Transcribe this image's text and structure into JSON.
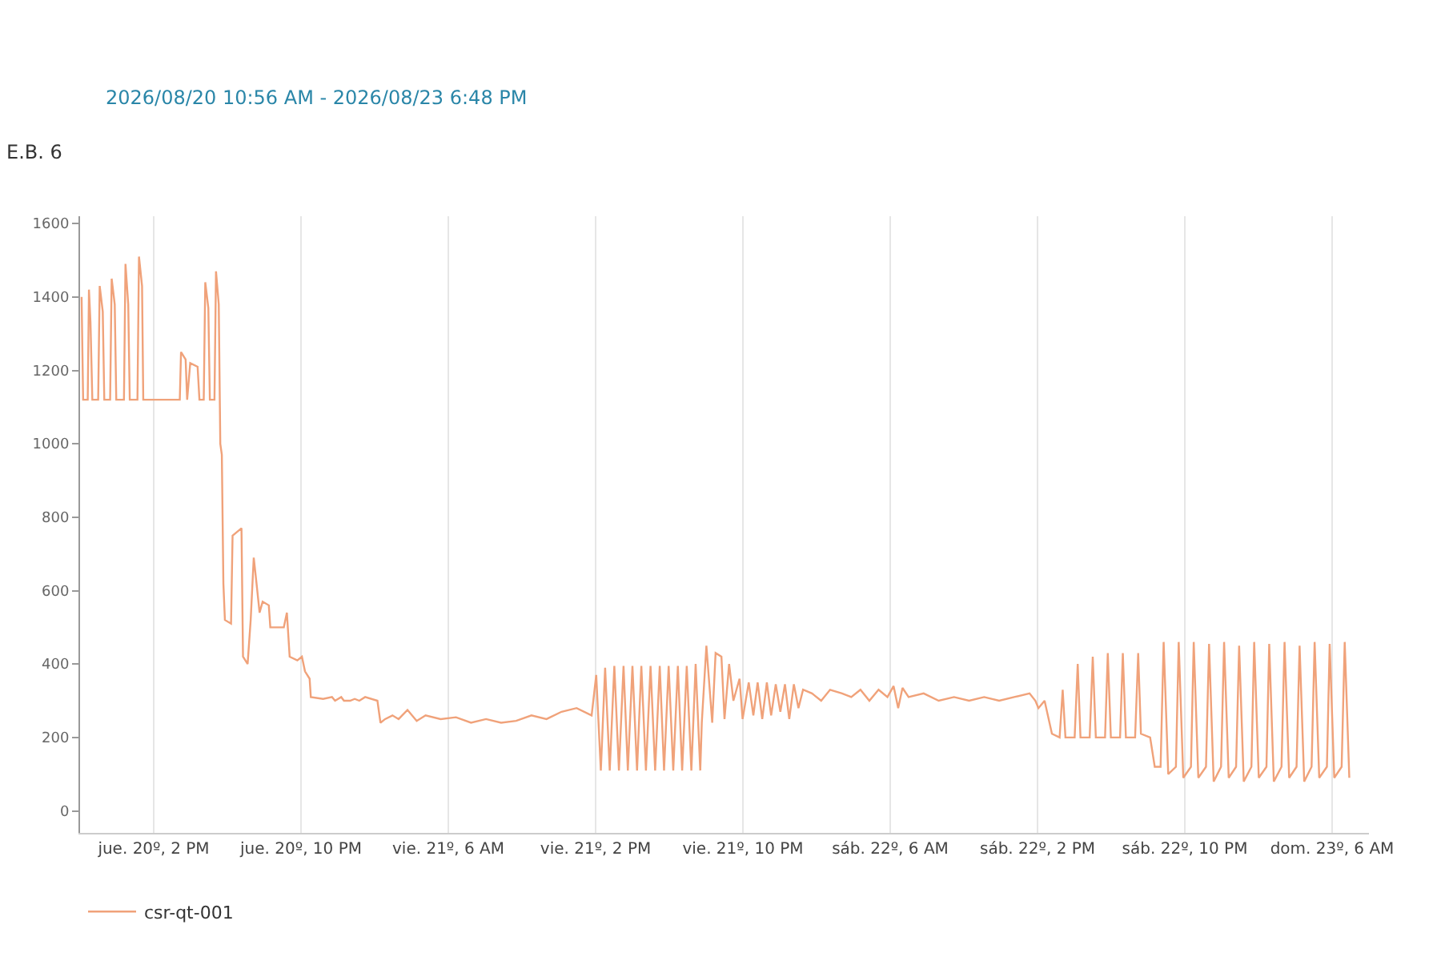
{
  "chart_data": {
    "type": "line",
    "title": "E.B. 6",
    "subtitle": "2026/08/20 10:56 AM - 2026/08/23 6:48 PM",
    "x": [
      "2026-08-20T10:05",
      "2026-08-20T10:10",
      "2026-08-20T10:25",
      "2026-08-20T10:29",
      "2026-08-20T10:34",
      "2026-08-20T10:40",
      "2026-08-20T10:59",
      "2026-08-20T11:04",
      "2026-08-20T11:14",
      "2026-08-20T11:19",
      "2026-08-20T11:38",
      "2026-08-20T11:43",
      "2026-08-20T11:53",
      "2026-08-20T11:58",
      "2026-08-20T12:23",
      "2026-08-20T12:28",
      "2026-08-20T12:37",
      "2026-08-20T12:42",
      "2026-08-20T13:07",
      "2026-08-20T13:12",
      "2026-08-20T13:22",
      "2026-08-20T13:26",
      "2026-08-20T15:25",
      "2026-08-20T15:29",
      "2026-08-20T15:44",
      "2026-08-20T15:49",
      "2026-08-20T15:59",
      "2026-08-20T16:23",
      "2026-08-20T16:29",
      "2026-08-20T16:43",
      "2026-08-20T16:48",
      "2026-08-20T16:58",
      "2026-08-20T17:03",
      "2026-08-20T17:18",
      "2026-08-20T17:23",
      "2026-08-20T17:32",
      "2026-08-20T17:37",
      "2026-08-20T17:42",
      "2026-08-20T17:47",
      "2026-08-20T17:52",
      "2026-08-20T18:12",
      "2026-08-20T18:17",
      "2026-08-20T18:46",
      "2026-08-20T18:51",
      "2026-08-20T19:06",
      "2026-08-20T19:16",
      "2026-08-20T19:26",
      "2026-08-20T19:35",
      "2026-08-20T19:45",
      "2026-08-20T19:55",
      "2026-08-20T20:15",
      "2026-08-20T20:20",
      "2026-08-20T21:04",
      "2026-08-20T21:14",
      "2026-08-20T21:23",
      "2026-08-20T21:48",
      "2026-08-20T22:03",
      "2026-08-20T22:13",
      "2026-08-20T22:28",
      "2026-08-20T22:32",
      "2026-08-20T23:12",
      "2026-08-20T23:41",
      "2026-08-20T23:51",
      "2026-08-21T00:11",
      "2026-08-21T00:20",
      "2026-08-21T00:40",
      "2026-08-21T00:55",
      "2026-08-21T01:10",
      "2026-08-21T01:29",
      "2026-08-21T02:09",
      "2026-08-21T02:19",
      "2026-08-21T02:34",
      "2026-08-21T02:58",
      "2026-08-21T03:18",
      "2026-08-21T03:47",
      "2026-08-21T04:17",
      "2026-08-21T04:46",
      "2026-08-21T05:35",
      "2026-08-21T06:25",
      "2026-08-21T07:14",
      "2026-08-21T08:03",
      "2026-08-21T08:52",
      "2026-08-21T09:41",
      "2026-08-21T10:31",
      "2026-08-21T11:20",
      "2026-08-21T12:09",
      "2026-08-21T12:58",
      "2026-08-21T13:47",
      "2026-08-21T14:02",
      "2026-08-21T14:17",
      "2026-08-21T14:31",
      "2026-08-21T14:46",
      "2026-08-21T15:01",
      "2026-08-21T15:16",
      "2026-08-21T15:31",
      "2026-08-21T15:45",
      "2026-08-21T16:00",
      "2026-08-21T16:15",
      "2026-08-21T16:29",
      "2026-08-21T16:44",
      "2026-08-21T16:59",
      "2026-08-21T17:14",
      "2026-08-21T17:29",
      "2026-08-21T17:43",
      "2026-08-21T17:58",
      "2026-08-21T18:13",
      "2026-08-21T18:28",
      "2026-08-21T18:42",
      "2026-08-21T18:57",
      "2026-08-21T19:12",
      "2026-08-21T19:26",
      "2026-08-21T19:41",
      "2026-08-21T19:46",
      "2026-08-21T20:01",
      "2026-08-21T20:20",
      "2026-08-21T20:31",
      "2026-08-21T20:50",
      "2026-08-21T21:00",
      "2026-08-21T21:15",
      "2026-08-21T21:29",
      "2026-08-21T21:49",
      "2026-08-21T21:59",
      "2026-08-21T22:19",
      "2026-08-21T22:34",
      "2026-08-21T22:48",
      "2026-08-21T23:03",
      "2026-08-21T23:18",
      "2026-08-21T23:32",
      "2026-08-21T23:47",
      "2026-08-22T00:02",
      "2026-08-22T00:17",
      "2026-08-22T00:31",
      "2026-08-22T00:46",
      "2026-08-22T01:01",
      "2026-08-22T01:16",
      "2026-08-22T01:45",
      "2026-08-22T02:15",
      "2026-08-22T02:44",
      "2026-08-22T03:23",
      "2026-08-22T03:53",
      "2026-08-22T04:23",
      "2026-08-22T04:52",
      "2026-08-22T05:22",
      "2026-08-22T05:51",
      "2026-08-22T06:11",
      "2026-08-22T06:26",
      "2026-08-22T06:40",
      "2026-08-22T07:00",
      "2026-08-22T07:49",
      "2026-08-22T08:38",
      "2026-08-22T09:28",
      "2026-08-22T10:17",
      "2026-08-22T11:06",
      "2026-08-22T11:55",
      "2026-08-22T12:44",
      "2026-08-22T13:34",
      "2026-08-22T13:53",
      "2026-08-22T14:03",
      "2026-08-22T14:23",
      "2026-08-22T14:47",
      "2026-08-22T15:12",
      "2026-08-22T15:22",
      "2026-08-22T15:31",
      "2026-08-22T16:01",
      "2026-08-22T16:11",
      "2026-08-22T16:20",
      "2026-08-22T16:50",
      "2026-08-22T17:00",
      "2026-08-22T17:10",
      "2026-08-22T17:40",
      "2026-08-22T17:49",
      "2026-08-22T17:59",
      "2026-08-22T18:29",
      "2026-08-22T18:38",
      "2026-08-22T18:48",
      "2026-08-22T19:18",
      "2026-08-22T19:28",
      "2026-08-22T19:37",
      "2026-08-22T20:07",
      "2026-08-22T20:22",
      "2026-08-22T20:41",
      "2026-08-22T20:51",
      "2026-08-22T21:06",
      "2026-08-22T21:31",
      "2026-08-22T21:40",
      "2026-08-22T21:55",
      "2026-08-22T22:20",
      "2026-08-22T22:29",
      "2026-08-22T22:44",
      "2026-08-22T23:09",
      "2026-08-22T23:19",
      "2026-08-22T23:34",
      "2026-08-22T23:58",
      "2026-08-23T00:08",
      "2026-08-23T00:23",
      "2026-08-23T00:47",
      "2026-08-23T00:57",
      "2026-08-23T01:12",
      "2026-08-23T01:37",
      "2026-08-23T01:46",
      "2026-08-23T02:01",
      "2026-08-23T02:26",
      "2026-08-23T02:35",
      "2026-08-23T02:50",
      "2026-08-23T03:15",
      "2026-08-23T03:25",
      "2026-08-23T03:40",
      "2026-08-23T04:04",
      "2026-08-23T04:14",
      "2026-08-23T04:29",
      "2026-08-23T04:53",
      "2026-08-23T05:03",
      "2026-08-23T05:18",
      "2026-08-23T05:43",
      "2026-08-23T05:52",
      "2026-08-23T06:07",
      "2026-08-23T06:31",
      "2026-08-23T06:41",
      "2026-08-23T06:56"
    ],
    "series": [
      {
        "name": "csr-qt-001",
        "color": "#f0a27a",
        "values": [
          1400,
          1120,
          1120,
          1420,
          1330,
          1120,
          1120,
          1430,
          1360,
          1120,
          1120,
          1450,
          1380,
          1120,
          1120,
          1490,
          1380,
          1120,
          1120,
          1510,
          1430,
          1120,
          1120,
          1250,
          1230,
          1120,
          1220,
          1210,
          1120,
          1120,
          1440,
          1370,
          1120,
          1120,
          1470,
          1380,
          1000,
          970,
          620,
          520,
          510,
          750,
          770,
          420,
          400,
          520,
          690,
          620,
          540,
          570,
          560,
          500,
          500,
          540,
          420,
          410,
          420,
          380,
          360,
          310,
          305,
          310,
          300,
          310,
          300,
          300,
          305,
          300,
          310,
          300,
          240,
          250,
          260,
          250,
          275,
          245,
          260,
          250,
          255,
          240,
          250,
          240,
          245,
          260,
          250,
          270,
          280,
          260,
          370,
          110,
          390,
          110,
          395,
          110,
          395,
          110,
          395,
          110,
          395,
          110,
          395,
          110,
          395,
          110,
          395,
          110,
          395,
          110,
          395,
          110,
          400,
          110,
          240,
          450,
          240,
          430,
          420,
          250,
          400,
          300,
          360,
          250,
          350,
          260,
          350,
          250,
          350,
          260,
          345,
          270,
          345,
          250,
          345,
          280,
          330,
          320,
          300,
          330,
          320,
          310,
          330,
          300,
          330,
          310,
          340,
          280,
          335,
          310,
          320,
          300,
          310,
          300,
          310,
          300,
          310,
          320,
          300,
          280,
          300,
          210,
          200,
          330,
          200,
          200,
          400,
          200,
          200,
          420,
          200,
          200,
          430,
          200,
          200,
          430,
          200,
          200,
          430,
          210,
          200,
          120,
          120,
          460,
          100,
          120,
          460,
          90,
          120,
          460,
          90,
          120,
          455,
          80,
          120,
          460,
          90,
          120,
          450,
          80,
          120,
          460,
          90,
          120,
          455,
          80,
          120,
          460,
          90,
          120,
          450,
          80,
          120,
          460,
          90,
          120,
          455,
          90,
          120,
          460,
          90
        ]
      }
    ],
    "xlim": [
      "2026-08-20T10:00",
      "2026-08-23T08:00"
    ],
    "xticks": [
      {
        "value": "2026-08-20T14:00",
        "label": "jue. 20º, 2 PM"
      },
      {
        "value": "2026-08-20T22:00",
        "label": "jue. 20º, 10 PM"
      },
      {
        "value": "2026-08-21T06:00",
        "label": "vie. 21º, 6 AM"
      },
      {
        "value": "2026-08-21T14:00",
        "label": "vie. 21º, 2 PM"
      },
      {
        "value": "2026-08-21T22:00",
        "label": "vie. 21º, 10 PM"
      },
      {
        "value": "2026-08-22T06:00",
        "label": "sáb. 22º, 6 AM"
      },
      {
        "value": "2026-08-22T14:00",
        "label": "sáb. 22º, 2 PM"
      },
      {
        "value": "2026-08-22T22:00",
        "label": "sáb. 22º, 10 PM"
      },
      {
        "value": "2026-08-23T06:00",
        "label": "dom. 23º, 6 AM"
      }
    ],
    "ylim": [
      -60,
      1620
    ],
    "yticks": [
      0,
      200,
      400,
      600,
      800,
      1000,
      1200,
      1400,
      1600
    ],
    "grid": "x",
    "legend": "bottom left",
    "line_style": "solid",
    "marker": "none"
  }
}
